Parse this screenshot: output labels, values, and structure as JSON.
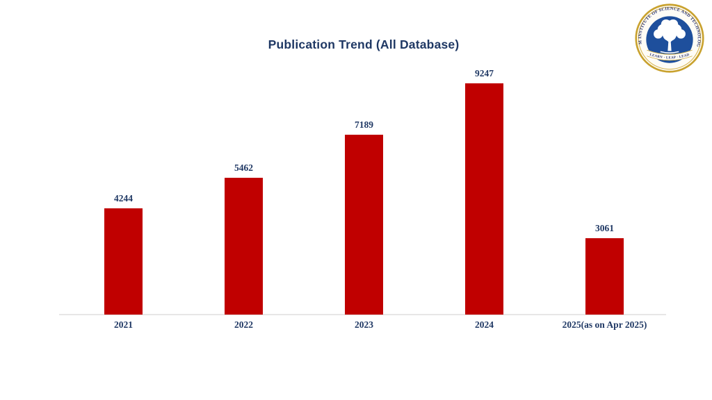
{
  "slide": {
    "background": "#FFFFFF"
  },
  "title": "Publication Trend (All Database)",
  "logo": {
    "institution": "SRM INSTITUTE OF SCIENCE AND TECHNOLOGY",
    "motto": "LEARN · LEAP · LEAD"
  },
  "colors": {
    "title_navy": "#1F3864",
    "bar_red": "#C00000",
    "axis_gray": "#E7E6E6",
    "seal_gold": "#C9A22F",
    "seal_gold_light": "#D8B756",
    "seal_blue": "#1E4F9C",
    "seal_cream": "#FEFCF6",
    "seal_text_navy": "#26316E"
  },
  "chart_data": {
    "type": "bar",
    "title": "Publication Trend (All Database)",
    "categories": [
      "2021",
      "2022",
      "2023",
      "2024",
      "2025(as on Apr 2025)"
    ],
    "values": [
      4244,
      5462,
      7189,
      9247,
      3061
    ],
    "bar_color": "#C00000",
    "label_color": "#1F3864",
    "axis_line_color": "#E7E6E6",
    "xlabel": "",
    "ylabel": "",
    "ylim": [
      0,
      9700
    ],
    "grid": false,
    "legend": false,
    "data_labels": true
  }
}
